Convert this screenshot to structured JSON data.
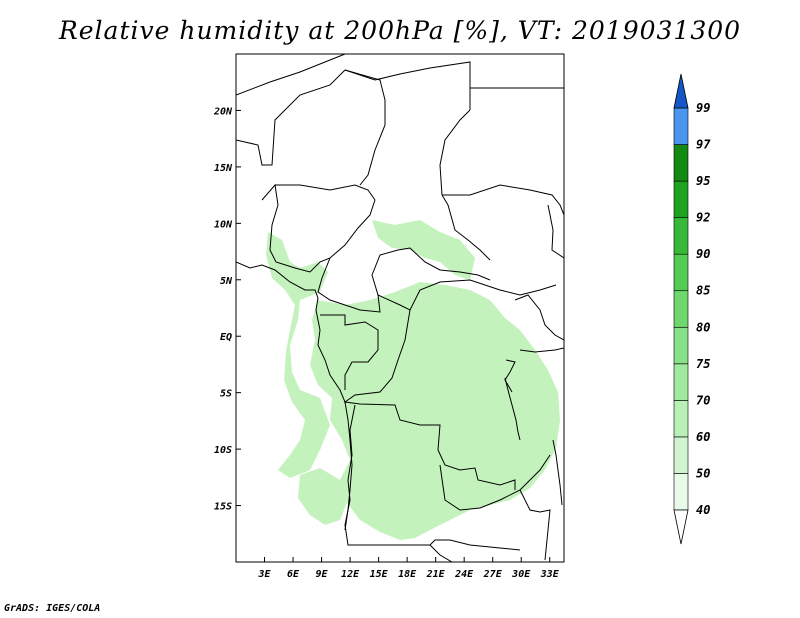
{
  "title": "Relative humidity at 200hPa [%], VT: 2019031300",
  "credit": "GrADS: IGES/COLA",
  "map": {
    "lon_range": [
      0,
      34.5
    ],
    "lat_range": [
      -20,
      25
    ],
    "x_ticks": [
      {
        "value": 3,
        "label": "3E"
      },
      {
        "value": 6,
        "label": "6E"
      },
      {
        "value": 9,
        "label": "9E"
      },
      {
        "value": 12,
        "label": "12E"
      },
      {
        "value": 15,
        "label": "15E"
      },
      {
        "value": 18,
        "label": "18E"
      },
      {
        "value": 21,
        "label": "21E"
      },
      {
        "value": 24,
        "label": "24E"
      },
      {
        "value": 27,
        "label": "27E"
      },
      {
        "value": 30,
        "label": "30E"
      },
      {
        "value": 33,
        "label": "33E"
      }
    ],
    "y_ticks": [
      {
        "value": 20,
        "label": "20N"
      },
      {
        "value": 15,
        "label": "15N"
      },
      {
        "value": 10,
        "label": "10N"
      },
      {
        "value": 5,
        "label": "5N"
      },
      {
        "value": 0,
        "label": "EQ"
      },
      {
        "value": -5,
        "label": "5S"
      },
      {
        "value": -10,
        "label": "10S"
      },
      {
        "value": -15,
        "label": "15S"
      }
    ]
  },
  "colorbar": {
    "levels": [
      "40",
      "50",
      "60",
      "70",
      "75",
      "80",
      "85",
      "90",
      "92",
      "95",
      "97",
      "99"
    ],
    "colors": [
      "#e8fae8",
      "#d0f5d0",
      "#b8f0b8",
      "#a0eaa0",
      "#88e088",
      "#6ed86e",
      "#52cc52",
      "#38b838",
      "#1fa21f",
      "#138a13",
      "#4a96ee",
      "#2a78e0",
      "#1456c8"
    ],
    "arrow_top_color": "#1456c8",
    "arrow_bottom_color": "#ffffff"
  },
  "field_color": "#c4f2bc"
}
